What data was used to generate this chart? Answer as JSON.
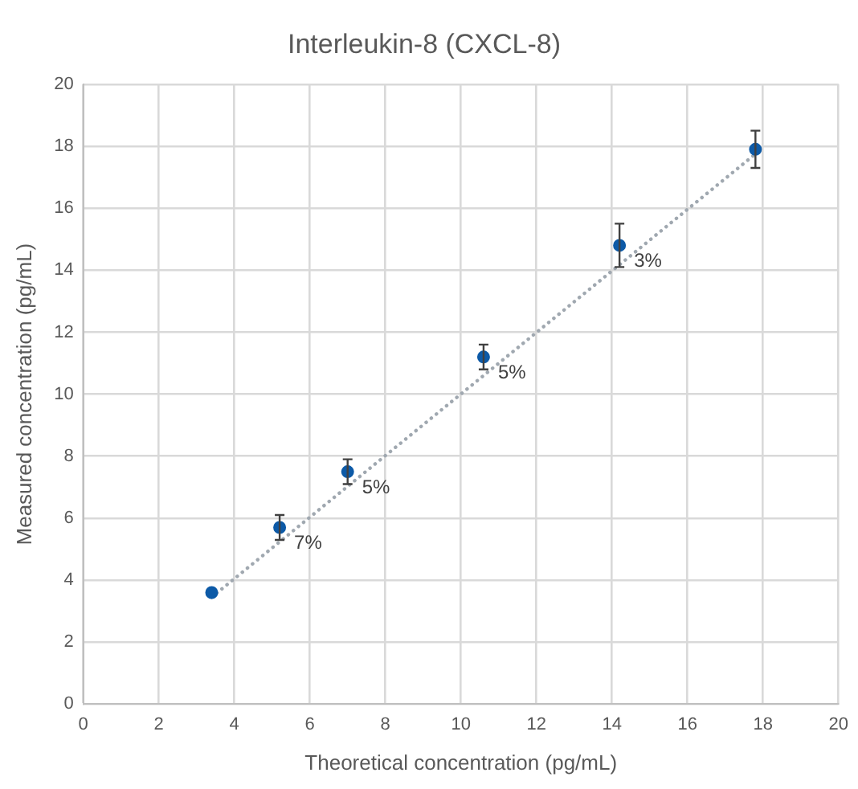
{
  "chart_data": {
    "type": "scatter",
    "title": "Interleukin-8 (CXCL-8)",
    "xlabel": "Theoretical concentration (pg/mL)",
    "ylabel": "Measured concentration (pg/mL)",
    "xlim": [
      0,
      20
    ],
    "xticks": [
      0,
      2,
      4,
      6,
      8,
      10,
      12,
      14,
      16,
      18,
      20
    ],
    "ylim": [
      0,
      20
    ],
    "yticks": [
      0,
      2,
      4,
      6,
      8,
      10,
      12,
      14,
      16,
      18,
      20
    ],
    "grid": true,
    "marker": "circle",
    "series": [
      {
        "color": "#0d5aa7",
        "x": [
          3.4,
          5.2,
          7.0,
          10.6,
          14.2,
          17.8
        ],
        "values": [
          3.6,
          5.7,
          7.5,
          11.2,
          14.8,
          17.9
        ],
        "errors": [
          null,
          0.4,
          0.4,
          0.4,
          0.7,
          0.6
        ]
      },
      {
        "type": "line",
        "color": "#a0a8b0",
        "x": [
          3.4,
          17.8
        ],
        "values": [
          3.45,
          17.75
        ],
        "line_style": "dotted",
        "marker": "none"
      }
    ],
    "annotations": [
      {
        "text": "7%",
        "x": 5.2,
        "y": 5.7
      },
      {
        "text": "5%",
        "x": 7.0,
        "y": 7.5
      },
      {
        "text": "5%",
        "x": 10.6,
        "y": 11.2
      },
      {
        "text": "3%",
        "x": 14.2,
        "y": 14.8
      }
    ]
  }
}
